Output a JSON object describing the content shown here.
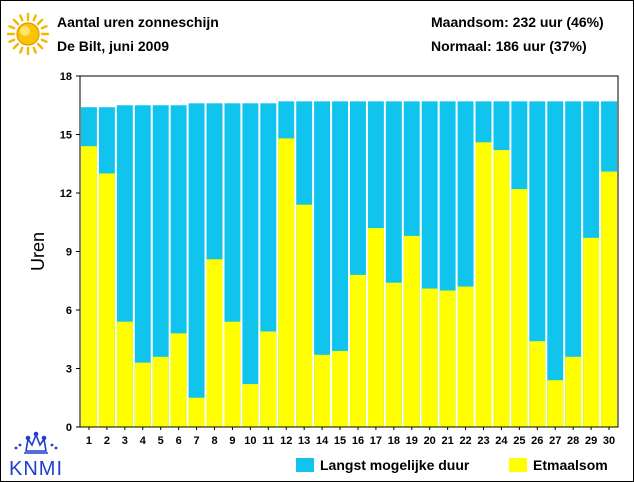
{
  "header": {
    "title": "Aantal uren zonneschijn",
    "subtitle": "De Bilt, juni 2009",
    "month_total": "Maandsom: 232 uur (46%)",
    "normal": "Normaal: 186 uur (37%)"
  },
  "logo_text": "KNMI",
  "colors": {
    "possible": "#11C4EE",
    "actual": "#FFFF00",
    "sun": "#F5B800"
  },
  "icons": {
    "sun": "sun-icon",
    "logo": "knmi-crown-logo"
  },
  "chart_data": {
    "type": "bar",
    "title": "Aantal uren zonneschijn",
    "ylabel": "Uren",
    "xlabel": "",
    "ylim": [
      0,
      18
    ],
    "yticks": [
      0,
      3,
      6,
      9,
      12,
      15,
      18
    ],
    "grid": false,
    "legend_position": "bottom-right",
    "categories": [
      "1",
      "2",
      "3",
      "4",
      "5",
      "6",
      "7",
      "8",
      "9",
      "10",
      "11",
      "12",
      "13",
      "14",
      "15",
      "16",
      "17",
      "18",
      "19",
      "20",
      "21",
      "22",
      "23",
      "24",
      "25",
      "26",
      "27",
      "28",
      "29",
      "30"
    ],
    "series": [
      {
        "name": "Langst mogelijke duur",
        "color": "#11C4EE",
        "values": [
          16.4,
          16.4,
          16.5,
          16.5,
          16.5,
          16.5,
          16.6,
          16.6,
          16.6,
          16.6,
          16.6,
          16.7,
          16.7,
          16.7,
          16.7,
          16.7,
          16.7,
          16.7,
          16.7,
          16.7,
          16.7,
          16.7,
          16.7,
          16.7,
          16.7,
          16.7,
          16.7,
          16.7,
          16.7,
          16.7
        ]
      },
      {
        "name": "Etmaalsom",
        "color": "#FFFF00",
        "values": [
          14.4,
          13.0,
          5.4,
          3.3,
          3.6,
          4.8,
          1.5,
          8.6,
          5.4,
          2.2,
          4.9,
          14.8,
          11.4,
          3.7,
          3.9,
          7.8,
          10.2,
          7.4,
          9.8,
          7.1,
          7.0,
          7.2,
          14.6,
          14.2,
          12.2,
          4.4,
          2.4,
          3.6,
          9.7,
          13.1
        ]
      }
    ]
  }
}
